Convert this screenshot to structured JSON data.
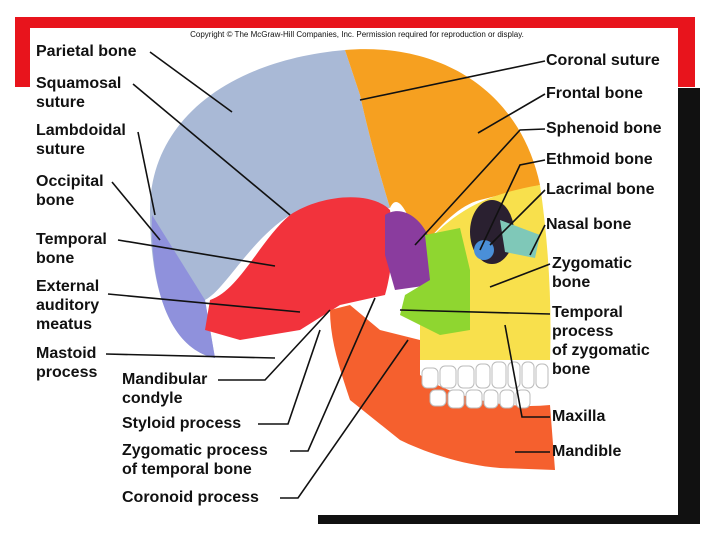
{
  "copyright": "Copyright © The McGraw-Hill Companies, Inc. Permission required for reproduction or display.",
  "labels": [
    {
      "lines": [
        "Parietal bone"
      ]
    },
    {
      "lines": [
        "Squamosal",
        "suture"
      ]
    },
    {
      "lines": [
        "Lambdoidal",
        "suture"
      ]
    },
    {
      "lines": [
        "Occipital",
        "bone"
      ]
    },
    {
      "lines": [
        "Temporal",
        "bone"
      ]
    },
    {
      "lines": [
        "External",
        "auditory",
        "meatus"
      ]
    },
    {
      "lines": [
        "Mastoid",
        "process"
      ]
    },
    {
      "lines": [
        "Mandibular",
        "condyle"
      ]
    },
    {
      "lines": [
        "Styloid process"
      ]
    },
    {
      "lines": [
        "Zygomatic process",
        "of temporal bone"
      ]
    },
    {
      "lines": [
        "Coronoid process"
      ]
    },
    {
      "lines": [
        "Coronal suture"
      ]
    },
    {
      "lines": [
        "Frontal bone"
      ]
    },
    {
      "lines": [
        "Sphenoid bone"
      ]
    },
    {
      "lines": [
        "Ethmoid bone"
      ]
    },
    {
      "lines": [
        "Lacrimal bone"
      ]
    },
    {
      "lines": [
        "Nasal bone"
      ]
    },
    {
      "lines": [
        "Zygomatic",
        "bone"
      ]
    },
    {
      "lines": [
        "Temporal",
        "process",
        "of zygomatic",
        "bone"
      ]
    },
    {
      "lines": [
        "Maxilla"
      ]
    },
    {
      "lines": [
        "Mandible"
      ]
    }
  ]
}
